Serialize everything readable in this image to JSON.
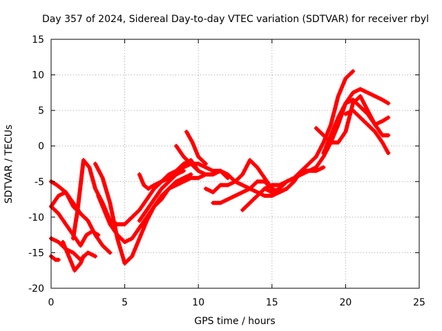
{
  "chart_data": {
    "type": "line",
    "title": "Day 357 of 2024, Sidereal Day-to-day VTEC variation (SDTVAR) for receiver rbyl",
    "xlabel": "GPS time / hours",
    "ylabel": "SDTVAR / TECUs",
    "xlim": [
      0,
      25
    ],
    "ylim": [
      -20,
      15
    ],
    "xticks": [
      0,
      5,
      10,
      15,
      20,
      25
    ],
    "yticks": [
      -20,
      -15,
      -10,
      -5,
      0,
      5,
      10,
      15
    ],
    "grid": true,
    "color": "#ff0000",
    "series": [
      {
        "name": "arc-1",
        "x": [
          0,
          0.4,
          1.0,
          1.5,
          2.0,
          2.5,
          3.0,
          3.5,
          4.0
        ],
        "y": [
          -5,
          -5.5,
          -6.5,
          -8,
          -9.5,
          -10.5,
          -12.5,
          -14,
          -15
        ]
      },
      {
        "name": "arc-2",
        "x": [
          0,
          0.5,
          1.0,
          1.5,
          2.0,
          2.4,
          2.8,
          3.2
        ],
        "y": [
          -8.5,
          -9.5,
          -11,
          -12.5,
          -14,
          -12.5,
          -12,
          -12.5
        ]
      },
      {
        "name": "arc-3",
        "x": [
          0,
          0.5,
          1.0,
          1.5,
          2.0,
          2.5,
          3.0
        ],
        "y": [
          -13,
          -13.5,
          -14.5,
          -15,
          -16,
          -15,
          -15.5
        ]
      },
      {
        "name": "arc-4",
        "x": [
          0,
          0.3,
          0.5
        ],
        "y": [
          -15.5,
          -16,
          -16
        ]
      },
      {
        "name": "arc-5",
        "x": [
          0,
          0.5,
          1.0,
          1.5,
          2.0
        ],
        "y": [
          -8.5,
          -7,
          -6.5,
          -8.5,
          -9.5
        ]
      },
      {
        "name": "arc-6",
        "x": [
          0.8,
          1.2,
          1.6,
          2.0,
          2.2
        ],
        "y": [
          -13.5,
          -15.5,
          -17.5,
          -16.5,
          -15.5
        ]
      },
      {
        "name": "arc-7",
        "x": [
          1.5,
          1.8,
          2.2,
          2.6,
          3.0,
          3.5,
          4.0,
          4.5,
          5.0,
          5.5,
          6.0,
          6.5,
          7.0,
          7.5,
          8.0,
          8.5,
          9.0,
          9.5,
          10.0
        ],
        "y": [
          -13,
          -9,
          -2,
          -3,
          -6,
          -8,
          -10.5,
          -11,
          -11,
          -10,
          -9,
          -7.5,
          -6,
          -5,
          -4,
          -3.5,
          -2.5,
          -2,
          -3.5
        ]
      },
      {
        "name": "arc-8",
        "x": [
          3,
          3.5,
          4.0,
          4.5,
          5.0,
          5.5,
          6.0,
          6.5,
          7.0,
          7.5,
          8.0,
          8.5,
          9.0,
          9.5
        ],
        "y": [
          -2.5,
          -4.5,
          -8,
          -13,
          -16.5,
          -15.5,
          -13,
          -10.5,
          -8.5,
          -7,
          -6,
          -5,
          -4.5,
          -4
        ]
      },
      {
        "name": "arc-9",
        "x": [
          3.2,
          3.6,
          4.0,
          4.5,
          5.0,
          5.5,
          6.0,
          6.5,
          7.0,
          7.5,
          8.0,
          8.5,
          9.0,
          9.5,
          10.0,
          10.5,
          11.0,
          11.5,
          12.0
        ],
        "y": [
          -7,
          -9,
          -11,
          -12.5,
          -13.5,
          -13,
          -11.5,
          -10,
          -8.5,
          -7.5,
          -6,
          -5.5,
          -5,
          -4.5,
          -4.5,
          -4,
          -4,
          -3.5,
          -4.5
        ]
      },
      {
        "name": "arc-10",
        "x": [
          6.0,
          6.5,
          7.0,
          7.5,
          8.0,
          8.5,
          9.0,
          9.5,
          10.0,
          10.5,
          11.0,
          11.5,
          12.0,
          12.5,
          13.0,
          13.5,
          14.0,
          14.5,
          15.0,
          15.5,
          16.0
        ],
        "y": [
          -10.5,
          -9,
          -7.5,
          -6,
          -5,
          -4,
          -3,
          -2.5,
          -2.5,
          -3,
          -3.5,
          -3.5,
          -4,
          -5,
          -5.5,
          -6,
          -6.5,
          -7,
          -7,
          -6.5,
          -6
        ]
      },
      {
        "name": "arc-11",
        "x": [
          6.0,
          6.3,
          6.6,
          7.0,
          7.5,
          8.0,
          8.5,
          9.0
        ],
        "y": [
          -4,
          -5.5,
          -6,
          -5.5,
          -5,
          -4.5,
          -4,
          -3.5
        ]
      },
      {
        "name": "arc-12",
        "x": [
          8.5,
          9.0,
          9.5,
          10.0,
          10.5,
          11.0
        ],
        "y": [
          0,
          -1.5,
          -2.5,
          -3.5,
          -4,
          -4
        ]
      },
      {
        "name": "arc-13",
        "x": [
          9.2,
          9.6,
          10.0,
          10.5
        ],
        "y": [
          2,
          0.5,
          -1.5,
          -2.5
        ]
      },
      {
        "name": "arc-14",
        "x": [
          10.5,
          11.0,
          11.5,
          12.0,
          12.5,
          13.0,
          13.5,
          14.0,
          14.5,
          15.0,
          15.5,
          16.0,
          16.5,
          17.0,
          17.5,
          18.0,
          18.5
        ],
        "y": [
          -6,
          -6.5,
          -5.5,
          -5.5,
          -5,
          -4,
          -2,
          -3,
          -4.5,
          -6,
          -6.5,
          -6,
          -5,
          -3.5,
          -3.5,
          -3.5,
          -3
        ]
      },
      {
        "name": "arc-15",
        "x": [
          11,
          11.5,
          12.0,
          12.5,
          13.0,
          13.5,
          14.0,
          14.5,
          15.0,
          15.5,
          16.0
        ],
        "y": [
          -8,
          -8,
          -7.5,
          -7,
          -6.5,
          -6,
          -5,
          -5,
          -6,
          -6.5,
          -6
        ]
      },
      {
        "name": "arc-16",
        "x": [
          13.0,
          13.5,
          14.0,
          14.5,
          15.0,
          15.5,
          16.0,
          16.5,
          17.0,
          17.5,
          18.0,
          18.5,
          19.0,
          19.5,
          20.0,
          20.5
        ],
        "y": [
          -9,
          -8,
          -7,
          -6,
          -5.5,
          -5.5,
          -5,
          -4.5,
          -3.5,
          -2.5,
          -1.5,
          0.5,
          3,
          7,
          9.5,
          10.5
        ]
      },
      {
        "name": "arc-17",
        "x": [
          14.5,
          15.0,
          15.5,
          16.0,
          16.5,
          17.0,
          17.5,
          18.0,
          18.5,
          19.0,
          19.5,
          20.0,
          20.5,
          21.0,
          21.5,
          22.0,
          22.5,
          22.9
        ],
        "y": [
          -6,
          -6.5,
          -6,
          -5,
          -4.5,
          -4,
          -3.5,
          -3,
          -1.5,
          0.5,
          3,
          6,
          7.5,
          8,
          7.5,
          7,
          6.5,
          6
        ]
      },
      {
        "name": "arc-18",
        "x": [
          18.5,
          19.0,
          19.5,
          20.0,
          20.5,
          21.0,
          21.5,
          22.0,
          22.5,
          22.9
        ],
        "y": [
          -1,
          1.5,
          4,
          6,
          6.5,
          5.5,
          4.5,
          3,
          3.5,
          4
        ]
      },
      {
        "name": "arc-19",
        "x": [
          18.0,
          18.5,
          19.0,
          19.5,
          20.0,
          20.5,
          21.0,
          21.5,
          22.0,
          22.5,
          22.9
        ],
        "y": [
          2.5,
          1.5,
          0.5,
          0.5,
          2,
          6,
          7,
          5,
          3,
          1.5,
          1.5
        ]
      },
      {
        "name": "arc-20",
        "x": [
          20.0,
          20.5,
          21.0,
          21.5,
          22.0,
          22.5,
          22.9
        ],
        "y": [
          4.5,
          5,
          4,
          3,
          2,
          0.5,
          -1
        ]
      }
    ]
  }
}
